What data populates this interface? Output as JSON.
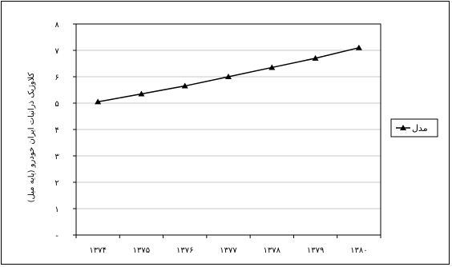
{
  "chart_data": {
    "type": "line",
    "categories": [
      "۱۳۷۴",
      "۱۳۷۵",
      "۱۳۷۶",
      "۱۳۷۷",
      "۱۳۷۸",
      "۱۳۷۹",
      "۱۳۸۰"
    ],
    "series": [
      {
        "name": "مدل",
        "values": [
          5.05,
          5.35,
          5.65,
          6.0,
          6.35,
          6.7,
          7.1
        ],
        "color": "#000000",
        "marker": "triangle"
      }
    ],
    "ylabel": "کلاوژیک ذرانیات ایران خودرو (پایه میل)",
    "yticks": [
      "-",
      "۱",
      "۲",
      "۳",
      "۴",
      "۵",
      "۶",
      "۷",
      "۸"
    ],
    "ylim": [
      0,
      8
    ],
    "grid": true,
    "legend": "right"
  }
}
